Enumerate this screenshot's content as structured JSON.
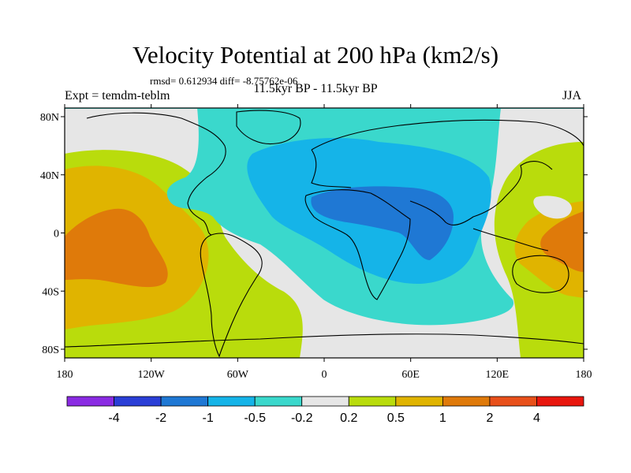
{
  "title": "Velocity Potential at 200 hPa (km2/s)",
  "stats": "rmsd= 0.612934 diff= -8.75762e-06",
  "subtitle": "11.5kyr BP - 11.5kyr BP",
  "experiment": "Expt = temdm-teblm",
  "season": "JJA",
  "axes": {
    "lon_ticks": [
      "180",
      "120W",
      "60W",
      "0",
      "60E",
      "120E",
      "180"
    ],
    "lat_ticks": [
      "80N",
      "40N",
      "0",
      "40S",
      "80S"
    ]
  },
  "colorbar": {
    "colors": [
      "#8a2be2",
      "#2a3ed6",
      "#1f78d4",
      "#15b4e8",
      "#3ad8cc",
      "#e6e6e6",
      "#b9dc0c",
      "#e0b400",
      "#df7a0a",
      "#e8501a",
      "#e8160e"
    ],
    "labels": [
      "-4",
      "-2",
      "-1",
      "-0.5",
      "-0.2",
      "0.2",
      "0.5",
      "1",
      "2",
      "4"
    ]
  },
  "field_colors": {
    "land_outline": "#000000",
    "neg_strong": "#1f78d4",
    "neg_mid": "#15b4e8",
    "neg_weak": "#3ad8cc",
    "neutral": "#e6e6e6",
    "pos_weak": "#b9dc0c",
    "pos_mid": "#e0b400",
    "pos_strong": "#df7a0a"
  }
}
